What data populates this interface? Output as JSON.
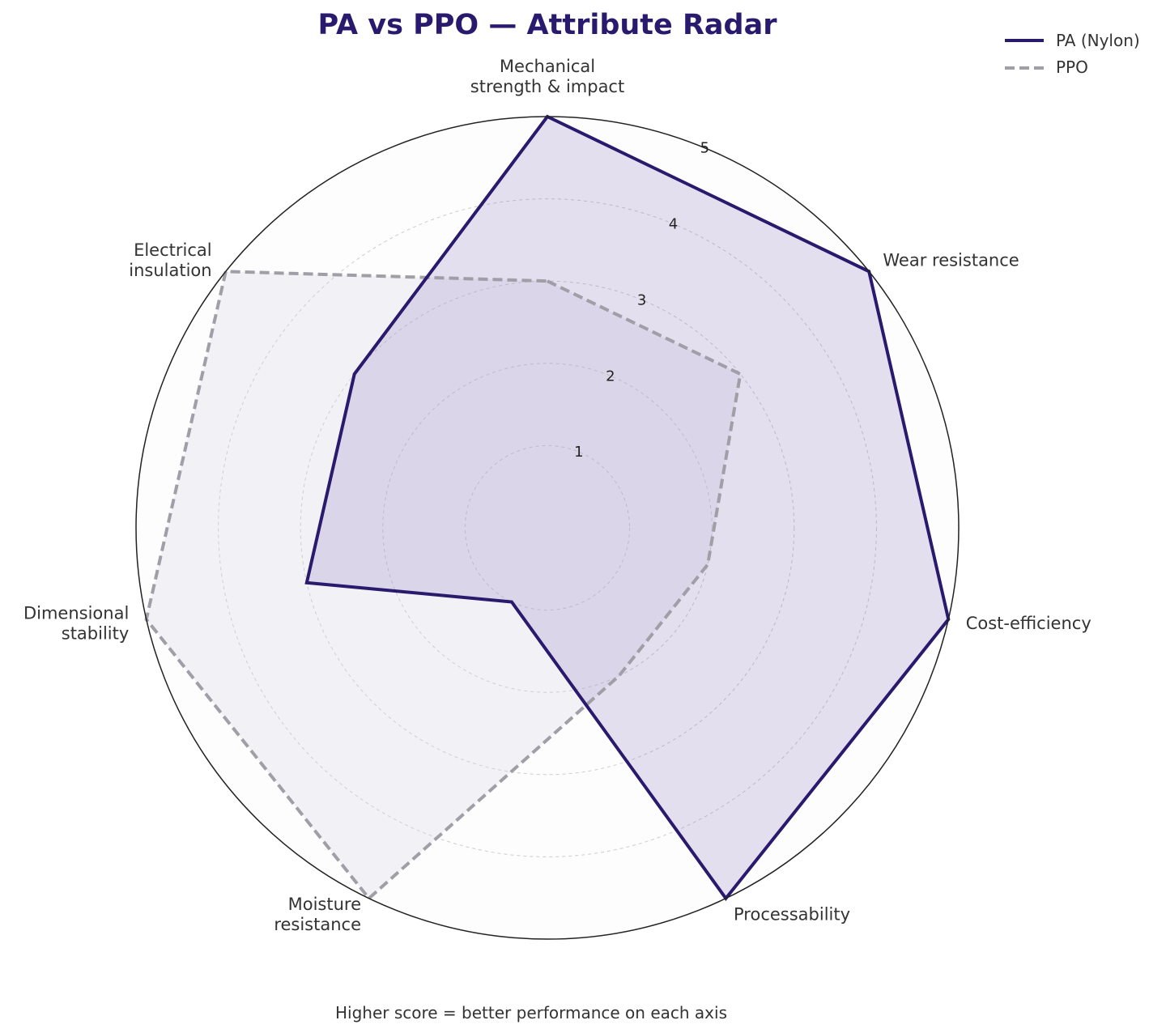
{
  "chart_data": {
    "type": "radar",
    "title": "PA vs PPO — Attribute Radar",
    "caption": "Higher score = better performance on each axis",
    "axes": [
      [
        "Mechanical",
        "strength & impact"
      ],
      [
        "Wear resistance"
      ],
      [
        "Cost-efficiency"
      ],
      [
        "Processability"
      ],
      [
        "Moisture",
        "resistance"
      ],
      [
        "Dimensional",
        "stability"
      ],
      [
        "Electrical",
        "insulation"
      ]
    ],
    "rlim": [
      0,
      5
    ],
    "ticks": [
      "1",
      "2",
      "3",
      "4",
      "5"
    ],
    "series": [
      {
        "name": "PA (Nylon)",
        "values": [
          5,
          5,
          5,
          5,
          1,
          3,
          3
        ],
        "color": "#2a1a6e",
        "line_style": "solid",
        "fill": "#7b68b5"
      },
      {
        "name": "PPO",
        "values": [
          3,
          3,
          2,
          2,
          5,
          5,
          5
        ],
        "color": "#a09ea6",
        "line_style": "dashed",
        "fill": "#d8d5e0"
      }
    ],
    "grid": true,
    "legend_position": "top-right"
  },
  "colors": {
    "title": "#2a1a6e",
    "outer_circle": "#222222",
    "grid": "#cccccc",
    "background": "#fdfdfe"
  }
}
